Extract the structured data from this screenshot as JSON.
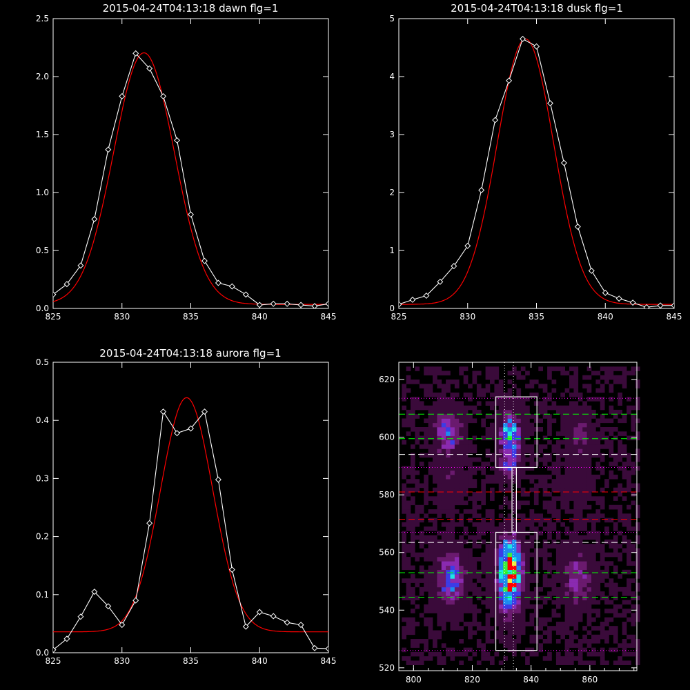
{
  "chart_data": [
    {
      "type": "line",
      "title": "2015-04-24T04:13:18 dawn flg=1",
      "xlim": [
        825,
        845
      ],
      "ylim": [
        0,
        2.5
      ],
      "xticks": [
        825,
        830,
        835,
        840,
        845
      ],
      "yticks": [
        0.0,
        0.5,
        1.0,
        1.5,
        2.0,
        2.5
      ],
      "ytick_labels": [
        "0.0",
        "0.5",
        "1.0",
        "1.5",
        "2.0",
        "2.5"
      ],
      "series": [
        {
          "style": "white-diamond-line",
          "color": "#ffffff",
          "x": [
            825,
            826,
            827,
            828,
            829,
            830,
            831,
            832,
            833,
            834,
            835,
            836,
            837,
            838,
            839,
            840,
            841,
            842,
            843,
            844,
            845
          ],
          "y": [
            0.12,
            0.21,
            0.37,
            0.77,
            1.37,
            1.83,
            2.2,
            2.07,
            1.83,
            1.45,
            0.81,
            0.41,
            0.22,
            0.19,
            0.12,
            0.03,
            0.04,
            0.04,
            0.03,
            0.02,
            0.04
          ]
        },
        {
          "style": "red-gaussian-fit",
          "color": "#ff0000",
          "amplitude": 2.17,
          "center": 831.6,
          "sigma": 2.2,
          "offset": 0.035
        }
      ]
    },
    {
      "type": "line",
      "title": "2015-04-24T04:13:18 dusk flg=1",
      "xlim": [
        825,
        845
      ],
      "ylim": [
        0,
        5
      ],
      "xticks": [
        825,
        830,
        835,
        840,
        845
      ],
      "yticks": [
        0,
        1,
        2,
        3,
        4,
        5
      ],
      "ytick_labels": [
        "0",
        "1",
        "2",
        "3",
        "4",
        "5"
      ],
      "series": [
        {
          "style": "white-diamond-line",
          "color": "#ffffff",
          "x": [
            825,
            826,
            827,
            828,
            829,
            830,
            831,
            832,
            833,
            834,
            835,
            836,
            837,
            838,
            839,
            840,
            841,
            842,
            843,
            844,
            845
          ],
          "y": [
            0.07,
            0.15,
            0.22,
            0.46,
            0.73,
            1.08,
            2.04,
            3.25,
            3.93,
            4.65,
            4.52,
            3.54,
            2.51,
            1.41,
            0.65,
            0.27,
            0.17,
            0.1,
            0.02,
            0.05,
            0.05
          ]
        },
        {
          "style": "red-gaussian-fit",
          "color": "#ff0000",
          "amplitude": 4.58,
          "center": 834.2,
          "sigma": 2.05,
          "offset": 0.07
        }
      ]
    },
    {
      "type": "line",
      "title": "2015-04-24T04:13:18 aurora flg=1",
      "xlim": [
        825,
        845
      ],
      "ylim": [
        0,
        0.5
      ],
      "xticks": [
        825,
        830,
        835,
        840,
        845
      ],
      "yticks": [
        0.0,
        0.1,
        0.2,
        0.3,
        0.4,
        0.5
      ],
      "ytick_labels": [
        "0.0",
        "0.1",
        "0.2",
        "0.3",
        "0.4",
        "0.5"
      ],
      "series": [
        {
          "style": "white-diamond-line",
          "color": "#ffffff",
          "x": [
            825,
            826,
            827,
            828,
            829,
            830,
            831,
            832,
            833,
            834,
            835,
            836,
            837,
            838,
            839,
            840,
            841,
            842,
            843,
            844,
            845
          ],
          "y": [
            0.005,
            0.024,
            0.062,
            0.105,
            0.08,
            0.048,
            0.09,
            0.223,
            0.415,
            0.378,
            0.386,
            0.415,
            0.298,
            0.143,
            0.045,
            0.07,
            0.063,
            0.052,
            0.048,
            0.008,
            0.007
          ]
        },
        {
          "style": "red-gaussian-fit",
          "color": "#ff0000",
          "amplitude": 0.403,
          "center": 834.7,
          "sigma": 1.9,
          "offset": 0.036
        }
      ]
    },
    {
      "type": "heatmap",
      "title": "",
      "xlim": [
        795,
        876
      ],
      "ylim": [
        519,
        626
      ],
      "xticks": [
        800,
        820,
        840,
        860
      ],
      "yticks": [
        520,
        540,
        560,
        580,
        600,
        620
      ],
      "colormap": [
        "#000000",
        "#3a0a3a",
        "#6a1a6e",
        "#8a2ab0",
        "#3c3ce6",
        "#1e8cf0",
        "#1ee6e6",
        "#3cf03c",
        "#f0f03c",
        "#ff0000"
      ],
      "blobs": [
        {
          "x": 832,
          "y": 549,
          "sx": 2.5,
          "sy": 6.5,
          "amp": 1.0
        },
        {
          "x": 832,
          "y": 560,
          "sx": 2.5,
          "sy": 4,
          "amp": 0.55
        },
        {
          "x": 832,
          "y": 600,
          "sx": 2.2,
          "sy": 5,
          "amp": 0.72
        },
        {
          "x": 832,
          "y": 590,
          "sx": 2.0,
          "sy": 3,
          "amp": 0.35
        },
        {
          "x": 812,
          "y": 550,
          "sx": 3.0,
          "sy": 6,
          "amp": 0.45
        },
        {
          "x": 811,
          "y": 601,
          "sx": 2.8,
          "sy": 5,
          "amp": 0.42
        },
        {
          "x": 855,
          "y": 550,
          "sx": 3.0,
          "sy": 6,
          "amp": 0.32
        },
        {
          "x": 856,
          "y": 600,
          "sx": 2.8,
          "sy": 5,
          "amp": 0.2
        },
        {
          "x": 812,
          "y": 584,
          "sx": 3.0,
          "sy": 6,
          "amp": 0.1
        },
        {
          "x": 855,
          "y": 584,
          "sx": 3.0,
          "sy": 6,
          "amp": 0.09
        }
      ],
      "hlines": [
        {
          "y": 613.5,
          "color": "#ff00ff",
          "style": "dotted"
        },
        {
          "y": 608,
          "color": "#00ff00",
          "style": "dashed"
        },
        {
          "y": 599.5,
          "color": "#00ff00",
          "style": "dashed"
        },
        {
          "y": 594,
          "color": "#ffffff",
          "style": "dashed"
        },
        {
          "y": 589.5,
          "color": "#ff00ff",
          "style": "dotted"
        },
        {
          "y": 581,
          "color": "#ff0000",
          "style": "dashed"
        },
        {
          "y": 571.5,
          "color": "#ff0000",
          "style": "dashed"
        },
        {
          "y": 567,
          "color": "#ff00ff",
          "style": "dotted"
        },
        {
          "y": 563.5,
          "color": "#ffffff",
          "style": "dashed"
        },
        {
          "y": 553,
          "color": "#00ff00",
          "style": "dashed"
        },
        {
          "y": 544.5,
          "color": "#00ff00",
          "style": "dashed"
        },
        {
          "y": 526,
          "color": "#ff00ff",
          "style": "dotted"
        }
      ],
      "vlines": [
        {
          "x": 831,
          "color": "#ffffff",
          "style": "dotted"
        },
        {
          "x": 834,
          "color": "#ffffff",
          "style": "dotted"
        },
        {
          "x": 876,
          "color": "#ffffff",
          "style": "dotted"
        }
      ],
      "boxes": [
        {
          "x0": 828,
          "x1": 842,
          "y0": 589.5,
          "y1": 614
        },
        {
          "x0": 828,
          "x1": 842,
          "y0": 526,
          "y1": 567
        }
      ],
      "connector": [
        [
          833.5,
          567
        ],
        [
          833.5,
          589.5
        ],
        [
          835,
          589.5
        ],
        [
          835,
          567
        ]
      ]
    }
  ]
}
